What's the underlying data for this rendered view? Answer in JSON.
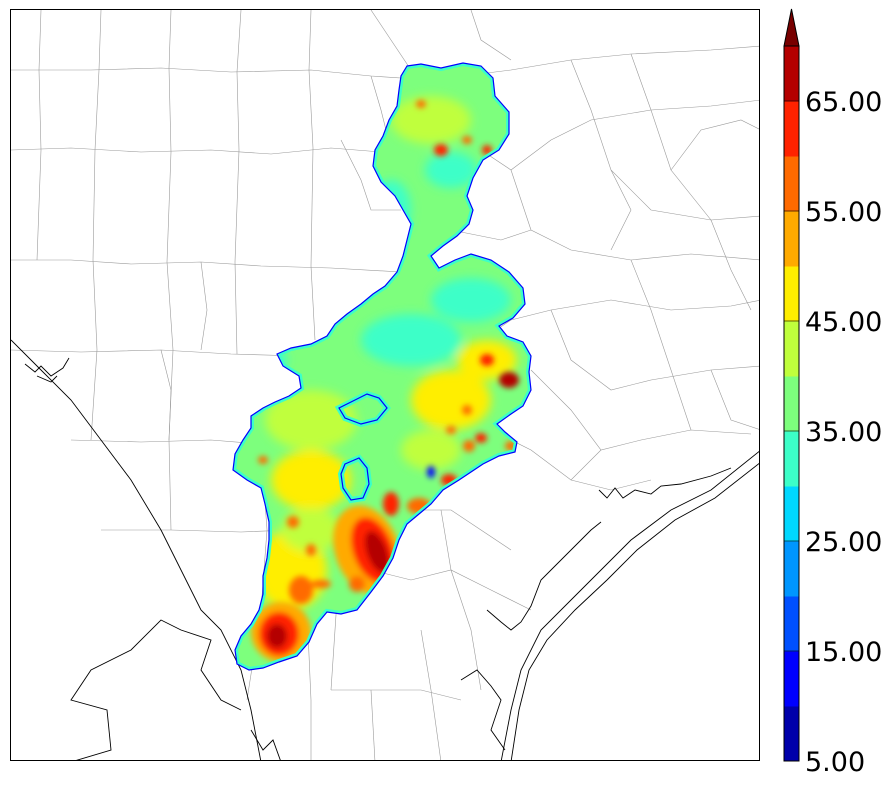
{
  "colorbar": {
    "min": 5,
    "max": 70,
    "extend": "max",
    "levels": [
      5,
      10,
      15,
      20,
      25,
      30,
      35,
      40,
      45,
      50,
      55,
      60,
      65,
      70
    ],
    "colors": [
      "#0000aa",
      "#0000ff",
      "#0050ff",
      "#0096ff",
      "#00d8ff",
      "#3cffc8",
      "#7dff7d",
      "#c0ff3c",
      "#ffee00",
      "#ffaa00",
      "#ff6a00",
      "#ff2200",
      "#b40000"
    ],
    "extend_color": "#780000",
    "tick_labels": [
      "5.00",
      "15.00",
      "25.00",
      "35.00",
      "45.00",
      "55.00",
      "65.00"
    ]
  },
  "map": {
    "background": "#ffffff",
    "county_line_color": "#9a9a9a",
    "coast_line_color": "#000000"
  }
}
